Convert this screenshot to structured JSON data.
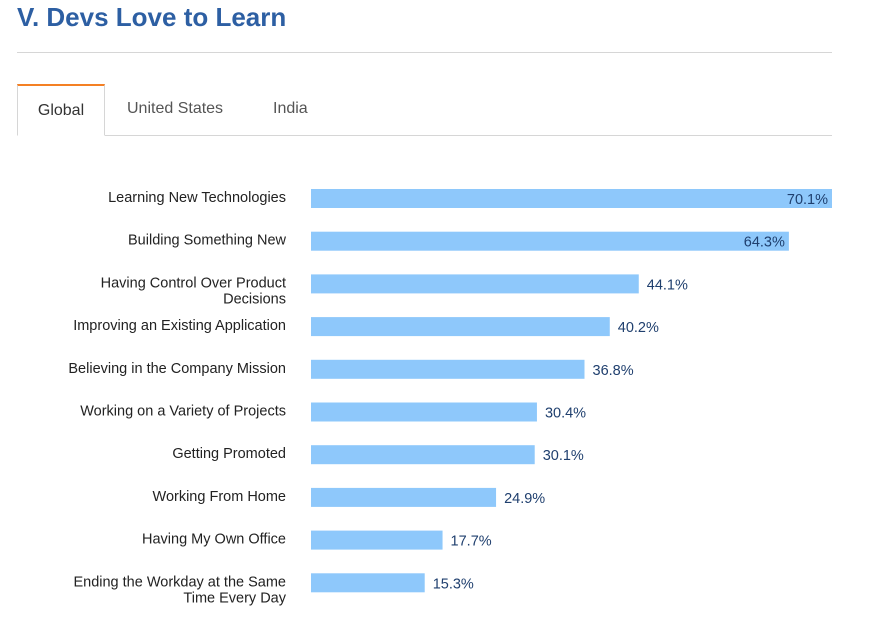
{
  "header": {
    "title": "V. Devs Love to Learn"
  },
  "tabs": [
    {
      "label": "Global",
      "active": true
    },
    {
      "label": "United States",
      "active": false
    },
    {
      "label": "India",
      "active": false
    }
  ],
  "colors": {
    "bar": "#8ec8fb",
    "title": "#2d5fa3",
    "active_tab_accent": "#f48024"
  },
  "chart_data": {
    "type": "bar",
    "orientation": "horizontal",
    "categories": [
      "Learning New Technologies",
      "Building Something New",
      "Having Control Over Product Decisions",
      "Improving an Existing Application",
      "Believing in the Company Mission",
      "Working on a Variety of Projects",
      "Getting Promoted",
      "Working From Home",
      "Having My Own Office",
      "Ending the Workday at the Same Time Every Day"
    ],
    "category_lines": [
      [
        "Learning New Technologies"
      ],
      [
        "Building Something New"
      ],
      [
        "Having Control Over Product",
        "Decisions"
      ],
      [
        "Improving an Existing Application"
      ],
      [
        "Believing in the Company Mission"
      ],
      [
        "Working on a Variety of Projects"
      ],
      [
        "Getting Promoted"
      ],
      [
        "Working From Home"
      ],
      [
        "Having My Own Office"
      ],
      [
        "Ending the Workday at the Same",
        "Time Every Day"
      ]
    ],
    "values": [
      70.1,
      64.3,
      44.1,
      40.2,
      36.8,
      30.4,
      30.1,
      24.9,
      17.7,
      15.3
    ],
    "value_labels": [
      "70.1%",
      "64.3%",
      "44.1%",
      "40.2%",
      "36.8%",
      "30.4%",
      "30.1%",
      "24.9%",
      "17.7%",
      "15.3%"
    ],
    "xlim": [
      0,
      70.1
    ],
    "grid": false,
    "legend": "none"
  }
}
